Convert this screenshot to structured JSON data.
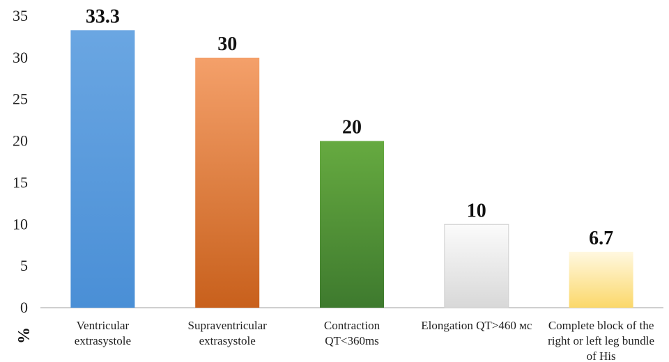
{
  "chart_data": {
    "type": "bar",
    "categories": [
      [
        "Ventricular",
        "extrasystole"
      ],
      [
        "Supraventricular",
        "extrasystole"
      ],
      [
        "Contraction",
        "QT<360ms"
      ],
      [
        "Elongation QT>460 мс"
      ],
      [
        "Complete block of the",
        "right or left leg bundle",
        "of His"
      ]
    ],
    "values": [
      33.3,
      30,
      20,
      10,
      6.7
    ],
    "value_labels": [
      "33.3",
      "30",
      "20",
      "10",
      "6.7"
    ],
    "ylabel": "%",
    "ylim": [
      0,
      35
    ],
    "yticks": [
      0,
      5,
      10,
      15,
      20,
      25,
      30,
      35
    ],
    "grid": false,
    "bar_colors": [
      [
        "#4a8fd6",
        "#6aa6e2"
      ],
      [
        "#c8601c",
        "#f4a06a"
      ],
      [
        "#3e7a2e",
        "#66aa40"
      ],
      [
        "#d8d8d8",
        "#fbfbfb"
      ],
      [
        "#fbd86a",
        "#fff8e0"
      ]
    ]
  }
}
